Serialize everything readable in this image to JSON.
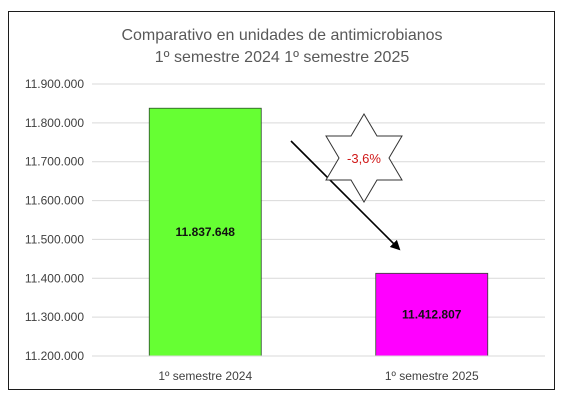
{
  "chart_data": {
    "type": "bar",
    "title_lines": [
      "Comparativo en unidades de antimicrobianos",
      "1º semestre 2024 1º semestre 2025"
    ],
    "categories": [
      "1º semestre 2024",
      "1º semestre 2025"
    ],
    "values": [
      11837648,
      11412807
    ],
    "value_labels": [
      "11.837.648",
      "11.412.807"
    ],
    "bar_colors": [
      "#66ff33",
      "#ff00ff"
    ],
    "ylim": [
      11200000,
      11900000
    ],
    "yticks": [
      11200000,
      11300000,
      11400000,
      11500000,
      11600000,
      11700000,
      11800000,
      11900000
    ],
    "ytick_labels": [
      "11.200.000",
      "11.300.000",
      "11.400.000",
      "11.500.000",
      "11.600.000",
      "11.700.000",
      "11.800.000",
      "11.900.000"
    ],
    "grid": true,
    "annotation": {
      "text": "-3,6%",
      "shape": "six-point-star",
      "arrow": "down-right"
    }
  }
}
